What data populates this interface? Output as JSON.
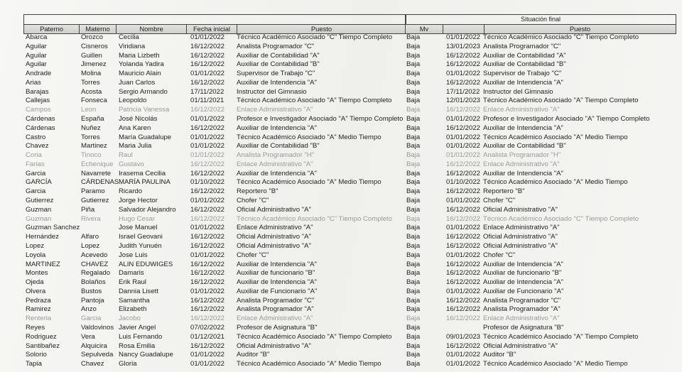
{
  "situacion_final_label": "Situación final",
  "headers_left": [
    "Paterno",
    "Materno",
    "Nombre",
    "Fecha inicial",
    "Puesto"
  ],
  "headers_right": [
    "Mv",
    "",
    "Puesto"
  ],
  "rows": [
    {
      "paterno": "Abarca",
      "materno": "Orozco",
      "nombre": "Cecilia",
      "fecha": "01/01/2022",
      "puesto": "Técnico Académico Asociado \"C\" Tiempo Completo",
      "mv": "Baja",
      "fecha_final": "01/01/2022",
      "puesto_final": "Técnico Académico Asociado \"C\" Tiempo Completo",
      "faded": false
    },
    {
      "paterno": "Aguilar",
      "materno": "Cisneros",
      "nombre": "Viridiana",
      "fecha": "16/12/2022",
      "puesto": "Analista Programador \"C\"",
      "mv": "Baja",
      "fecha_final": "13/01/2023",
      "puesto_final": "Analista Programador \"C\"",
      "faded": false
    },
    {
      "paterno": "Aguilar",
      "materno": "Guillen",
      "nombre": "Maria Lizbeth",
      "fecha": "16/12/2022",
      "puesto": "Auxiliar de Contabilidad \"A\"",
      "mv": "Baja",
      "fecha_final": "16/12/2022",
      "puesto_final": "Auxiliar de Contabilidad \"A\"",
      "faded": false
    },
    {
      "paterno": "Aguilar",
      "materno": "Jimenez",
      "nombre": "Yolanda Yadira",
      "fecha": "16/12/2022",
      "puesto": "Auxiliar de Contabilidad \"B\"",
      "mv": "Baja",
      "fecha_final": "16/12/2022",
      "puesto_final": "Auxiliar de Contabilidad \"B\"",
      "faded": false
    },
    {
      "paterno": "Andrade",
      "materno": "Molina",
      "nombre": "Mauricio Alain",
      "fecha": "01/01/2022",
      "puesto": "Supervisor de Trabajo \"C\"",
      "mv": "Baja",
      "fecha_final": "01/01/2022",
      "puesto_final": "Supervisor de Trabajo \"C\"",
      "faded": false
    },
    {
      "paterno": "Arias",
      "materno": "Torres",
      "nombre": "Juan Carlos",
      "fecha": "16/12/2022",
      "puesto": "Auxiliar de Intendencia \"A\"",
      "mv": "Baja",
      "fecha_final": "16/12/2022",
      "puesto_final": "Auxiliar de Intendencia \"A\"",
      "faded": false
    },
    {
      "paterno": "Barajas",
      "materno": "Acosta",
      "nombre": "Sergio Armando",
      "fecha": "17/11/2022",
      "puesto": "Instructor del Gimnasio",
      "mv": "Baja",
      "fecha_final": "17/11/2022",
      "puesto_final": "Instructor del Gimnasio",
      "faded": false
    },
    {
      "paterno": "Callejas",
      "materno": "Fonseca",
      "nombre": "Leopoldo",
      "fecha": "01/11/2021",
      "puesto": "Técnico Académico Asociado \"A\" Tiempo Completo",
      "mv": "Baja",
      "fecha_final": "12/01/2023",
      "puesto_final": "Técnico Académico Asociado \"A\" Tiempo Completo",
      "faded": false
    },
    {
      "paterno": "Campos",
      "materno": "Leon",
      "nombre": "Patricia Vanessa",
      "fecha": "16/12/2022",
      "puesto": "Enlace Administrativo \"A\"",
      "mv": "Baja",
      "fecha_final": "16/12/2022",
      "puesto_final": "Enlace Administrativo \"A\"",
      "faded": true
    },
    {
      "paterno": "Cárdenas",
      "materno": "España",
      "nombre": "José Nicolás",
      "fecha": "01/01/2022",
      "puesto": "Profesor e Investigador Asociado \"A\" Tiempo Completo",
      "mv": "Baja",
      "fecha_final": "01/01/2022",
      "puesto_final": "Profesor e Investigador Asociado \"A\" Tiempo Completo",
      "faded": false
    },
    {
      "paterno": "Cárdenas",
      "materno": "Nuñez",
      "nombre": "Ana Karen",
      "fecha": "16/12/2022",
      "puesto": "Auxiliar de Intendencia \"A\"",
      "mv": "Baja",
      "fecha_final": "16/12/2022",
      "puesto_final": "Auxiliar de Intendencia \"A\"",
      "faded": false
    },
    {
      "paterno": "Castro",
      "materno": "Torres",
      "nombre": "María Guadalupe",
      "fecha": "01/01/2022",
      "puesto": "Técnico Académico Asociado \"A\" Medio Tiempo",
      "mv": "Baja",
      "fecha_final": "01/01/2022",
      "puesto_final": "Técnico Académico Asociado \"A\" Medio Tiempo",
      "faded": false
    },
    {
      "paterno": "Chavez",
      "materno": "Martinez",
      "nombre": "Maria Julia",
      "fecha": "01/01/2022",
      "puesto": "Auxiliar de Contabilidad \"B\"",
      "mv": "Baja",
      "fecha_final": "01/01/2022",
      "puesto_final": "Auxiliar de Contabilidad \"B\"",
      "faded": false
    },
    {
      "paterno": "Coria",
      "materno": "Tinoco",
      "nombre": "Raul",
      "fecha": "01/01/2022",
      "puesto": "Analista Programador \"H\"",
      "mv": "Baja",
      "fecha_final": "01/01/2022",
      "puesto_final": "Analista Programador \"H\"",
      "faded": true
    },
    {
      "paterno": "Farias",
      "materno": "Echenique",
      "nombre": "Gustavo",
      "fecha": "16/12/2022",
      "puesto": "Enlace Administrativo \"A\"",
      "mv": "Baja",
      "fecha_final": "16/12/2022",
      "puesto_final": "Enlace Administrativo \"A\"",
      "faded": true
    },
    {
      "paterno": "Garcia",
      "materno": "Navarrete",
      "nombre": "Irasema Cecilia",
      "fecha": "16/12/2022",
      "puesto": "Auxiliar de Intendencia \"A\"",
      "mv": "Baja",
      "fecha_final": "16/12/2022",
      "puesto_final": "Auxiliar de Intendencia \"A\"",
      "faded": false
    },
    {
      "paterno": "GARCÍA",
      "materno": "CÁRDENAS",
      "nombre": "MARÍA PAULINA",
      "fecha": "01/10/2022",
      "puesto": "Técnico Académico Asociado \"A\" Medio Tiempo",
      "mv": "Baja",
      "fecha_final": "01/10/2022",
      "puesto_final": "Técnico Académico Asociado \"A\" Medio Tiempo",
      "faded": false
    },
    {
      "paterno": "Garcia",
      "materno": "Paramo",
      "nombre": "Ricardo",
      "fecha": "16/12/2022",
      "puesto": "Reportero \"B\"",
      "mv": "Baja",
      "fecha_final": "16/12/2022",
      "puesto_final": "Reportero \"B\"",
      "faded": false
    },
    {
      "paterno": "Gutierrez",
      "materno": "Gutierrez",
      "nombre": "Jorge Hector",
      "fecha": "01/01/2022",
      "puesto": "Chofer \"C\"",
      "mv": "Baja",
      "fecha_final": "01/01/2022",
      "puesto_final": "Chofer \"C\"",
      "faded": false
    },
    {
      "paterno": "Guzman",
      "materno": "Piña",
      "nombre": "Salvador Alejandro",
      "fecha": "16/12/2022",
      "puesto": "Oficial Administrativo \"A\"",
      "mv": "Baja",
      "fecha_final": "16/12/2022",
      "puesto_final": "Oficial Administrativo \"A\"",
      "faded": false
    },
    {
      "paterno": "Guzman",
      "materno": "Rivera",
      "nombre": "Hugo Cesar",
      "fecha": "16/12/2022",
      "puesto": "Técnico Académico Asociado \"C\" Tiempo Completo",
      "mv": "Baja",
      "fecha_final": "16/12/2022",
      "puesto_final": "Técnico Académico Asociado \"C\" Tiempo Completo",
      "faded": true
    },
    {
      "paterno": "Guzman Sanchez",
      "materno": "",
      "nombre": "Jose Manuel",
      "fecha": "01/01/2022",
      "puesto": "Enlace Administrativo \"A\"",
      "mv": "Baja",
      "fecha_final": "01/01/2022",
      "puesto_final": "Enlace Administrativo \"A\"",
      "faded": false
    },
    {
      "paterno": "Hernández",
      "materno": "Alfaro",
      "nombre": "Israel Geovani",
      "fecha": "16/12/2022",
      "puesto": "Oficial Administrativo \"A\"",
      "mv": "Baja",
      "fecha_final": "16/12/2022",
      "puesto_final": "Oficial Administrativo \"A\"",
      "faded": false
    },
    {
      "paterno": "Lopez",
      "materno": "Lopez",
      "nombre": "Judith Yunuén",
      "fecha": "16/12/2022",
      "puesto": "Oficial Administrativo \"A\"",
      "mv": "Baja",
      "fecha_final": "16/12/2022",
      "puesto_final": "Oficial Administrativo \"A\"",
      "faded": false
    },
    {
      "paterno": "Loyola",
      "materno": "Acevedo",
      "nombre": "Jose Luis",
      "fecha": "01/01/2022",
      "puesto": "Chofer \"C\"",
      "mv": "Baja",
      "fecha_final": "01/01/2022",
      "puesto_final": "Chofer \"C\"",
      "faded": false
    },
    {
      "paterno": "MARTINEZ",
      "materno": "CHAVEZ",
      "nombre": "ALIN EDUWIGES",
      "fecha": "16/12/2022",
      "puesto": "Auxiliar de Intendencia \"A\"",
      "mv": "Baja",
      "fecha_final": "16/12/2022",
      "puesto_final": "Auxiliar de Intendencia \"A\"",
      "faded": false
    },
    {
      "paterno": "Montes",
      "materno": "Regalado",
      "nombre": "Damaris",
      "fecha": "16/12/2022",
      "puesto": "Auxiliar de funcionario \"B\"",
      "mv": "Baja",
      "fecha_final": "16/12/2022",
      "puesto_final": "Auxiliar de funcionario \"B\"",
      "faded": false
    },
    {
      "paterno": "Ojeda",
      "materno": "Bolaños",
      "nombre": "Erik Raul",
      "fecha": "16/12/2022",
      "puesto": "Auxiliar de Intendencia \"A\"",
      "mv": "Baja",
      "fecha_final": "16/12/2022",
      "puesto_final": "Auxiliar de Intendencia \"A\"",
      "faded": false
    },
    {
      "paterno": "Olvera",
      "materno": "Bustos",
      "nombre": "Dannia Lisett",
      "fecha": "01/01/2022",
      "puesto": "Auxiliar de Funcionario \"A\"",
      "mv": "Baja",
      "fecha_final": "01/01/2022",
      "puesto_final": "Auxiliar de Funcionario \"A\"",
      "faded": false
    },
    {
      "paterno": "Pedraza",
      "materno": "Pantoja",
      "nombre": "Samantha",
      "fecha": "16/12/2022",
      "puesto": "Analista Programador \"C\"",
      "mv": "Baja",
      "fecha_final": "16/12/2022",
      "puesto_final": "Analista Programador \"C\"",
      "faded": false
    },
    {
      "paterno": "Ramirez",
      "materno": "Anzo",
      "nombre": "Elizabeth",
      "fecha": "16/12/2022",
      "puesto": "Analista Programador \"A\"",
      "mv": "Baja",
      "fecha_final": "16/12/2022",
      "puesto_final": "Analista Programador \"A\"",
      "faded": false
    },
    {
      "paterno": "Renteria",
      "materno": "Garcia",
      "nombre": "Jacobo",
      "fecha": "16/12/2022",
      "puesto": "Enlace Administrativo \"A\"",
      "mv": "Baja",
      "fecha_final": "16/12/2022",
      "puesto_final": "Enlace Administrativo \"A\"",
      "faded": true
    },
    {
      "paterno": "Reyes",
      "materno": "Valdovinos",
      "nombre": "Javier Angel",
      "fecha": "07/02/2022",
      "puesto": "Profesor de Asignatura \"B\"",
      "mv": "Baja",
      "fecha_final": "",
      "puesto_final": "Profesor de Asignatura \"B\"",
      "faded": false
    },
    {
      "paterno": "Rodriguez",
      "materno": "Vera",
      "nombre": "Luis Fernando",
      "fecha": "01/12/2021",
      "puesto": "Técnico Académico Asociado \"A\" Tiempo Completo",
      "mv": "Baja",
      "fecha_final": "09/01/2023",
      "puesto_final": "Técnico Académico Asociado \"A\" Tiempo Completo",
      "faded": false
    },
    {
      "paterno": "Santibañez",
      "materno": "Alquicira",
      "nombre": "Rosa Emilia",
      "fecha": "16/12/2022",
      "puesto": "Oficial Administrativo \"A\"",
      "mv": "Baja",
      "fecha_final": "16/12/2022",
      "puesto_final": "Oficial Administrativo \"A\"",
      "faded": false
    },
    {
      "paterno": "Solorio",
      "materno": "Sepulveda",
      "nombre": "Nancy Guadalupe",
      "fecha": "01/01/2022",
      "puesto": "Auditor \"B\"",
      "mv": "Baja",
      "fecha_final": "01/01/2022",
      "puesto_final": "Auditor \"B\"",
      "faded": false
    },
    {
      "paterno": "Tapia",
      "materno": "Chavez",
      "nombre": "Gloria",
      "fecha": "01/01/2022",
      "puesto": "Técnico Académico Asociado \"A\" Medio Tiempo",
      "mv": "Baja",
      "fecha_final": "01/01/2022",
      "puesto_final": "Técnico Académico Asociado \"A\" Medio Tiempo",
      "faded": false
    }
  ]
}
